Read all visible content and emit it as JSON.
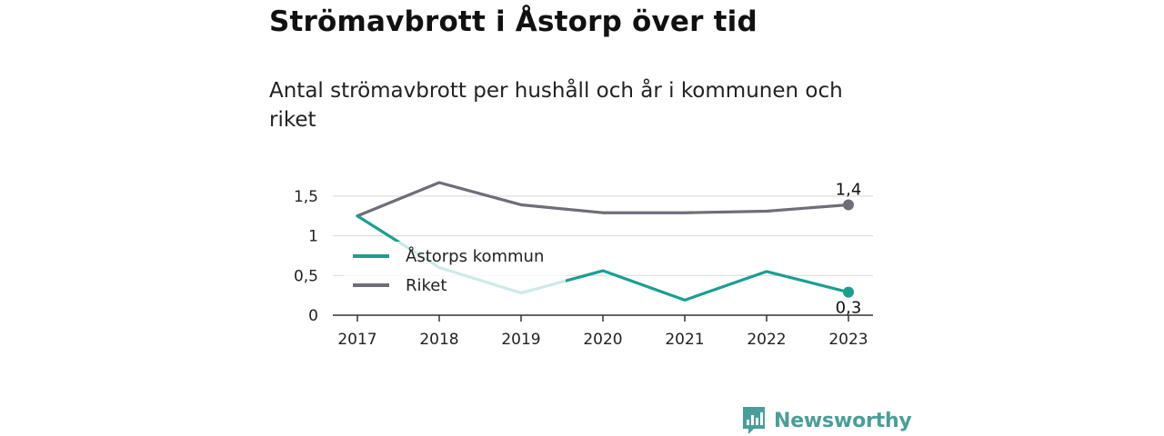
{
  "title": "Strömavbrott i Åstorp över tid",
  "subtitle": "Antal strömavbrott per hushåll och år i kommunen och riket",
  "chart_data": {
    "type": "line",
    "title": "Strömavbrott i Åstorp över tid",
    "subtitle": "Antal strömavbrott per hushåll och år i kommunen och riket",
    "xlabel": "",
    "ylabel": "",
    "x": [
      "2017",
      "2018",
      "2019",
      "2020",
      "2021",
      "2022",
      "2023"
    ],
    "ylim": [
      0,
      1.75
    ],
    "yticks": [
      {
        "value": 0,
        "label": "0"
      },
      {
        "value": 0.5,
        "label": "0,5"
      },
      {
        "value": 1,
        "label": "1"
      },
      {
        "value": 1.5,
        "label": "1,5"
      }
    ],
    "grid": true,
    "legend_position": "inside-left",
    "series": [
      {
        "name": "Åstorps kommun",
        "color": "#1a9e92",
        "values": [
          1.25,
          0.6,
          0.28,
          0.56,
          0.19,
          0.55,
          0.29
        ],
        "end_label": "0,3"
      },
      {
        "name": "Riket",
        "color": "#6e6e78",
        "values": [
          1.25,
          1.67,
          1.39,
          1.29,
          1.29,
          1.31,
          1.39
        ],
        "end_label": "1,4"
      }
    ]
  },
  "logo": {
    "text": "Newsworthy",
    "color": "#4a9e99",
    "icon": "newsworthy-logo-icon"
  }
}
